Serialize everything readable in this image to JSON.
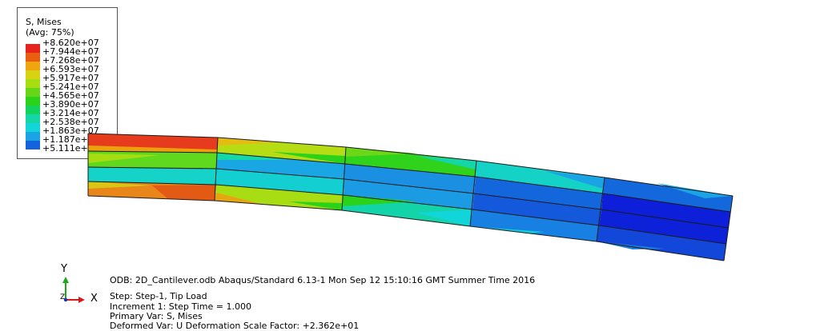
{
  "legend": {
    "title_line1": "S, Mises",
    "title_line2": "(Avg: 75%)",
    "levels": [
      {
        "label": "+8.620e+07",
        "color": "#e8231c"
      },
      {
        "label": "+7.944e+07",
        "color": "#eb5e10"
      },
      {
        "label": "+7.268e+07",
        "color": "#f0a40e"
      },
      {
        "label": "+6.593e+07",
        "color": "#d8d312"
      },
      {
        "label": "+5.917e+07",
        "color": "#a6de11"
      },
      {
        "label": "+5.241e+07",
        "color": "#67d617"
      },
      {
        "label": "+4.565e+07",
        "color": "#2ad319"
      },
      {
        "label": "+3.890e+07",
        "color": "#12d35e"
      },
      {
        "label": "+3.214e+07",
        "color": "#15d6a6"
      },
      {
        "label": "+2.538e+07",
        "color": "#12d5da"
      },
      {
        "label": "+1.863e+07",
        "color": "#1aa4e6"
      },
      {
        "label": "+1.187e+07",
        "color": "#1263dd"
      },
      {
        "label": "+5.111e+06",
        "color": "#0d1bd9"
      }
    ]
  },
  "triad": {
    "y_label": "Y",
    "z_label": "Z",
    "x_label": "X"
  },
  "info": {
    "odb_line": "ODB: 2D_Cantilever.odb    Abaqus/Standard 6.13-1    Mon Sep 12 15:10:16 GMT Summer Time 2016",
    "step_line": "Step: Step-1, Tip Load",
    "increment_line": "Increment      1: Step Time =    1.000",
    "primary_var_line": "Primary Var: S, Mises",
    "deformed_var_line": "Deformed Var: U   Deformation Scale Factor: +2.362e+01"
  }
}
